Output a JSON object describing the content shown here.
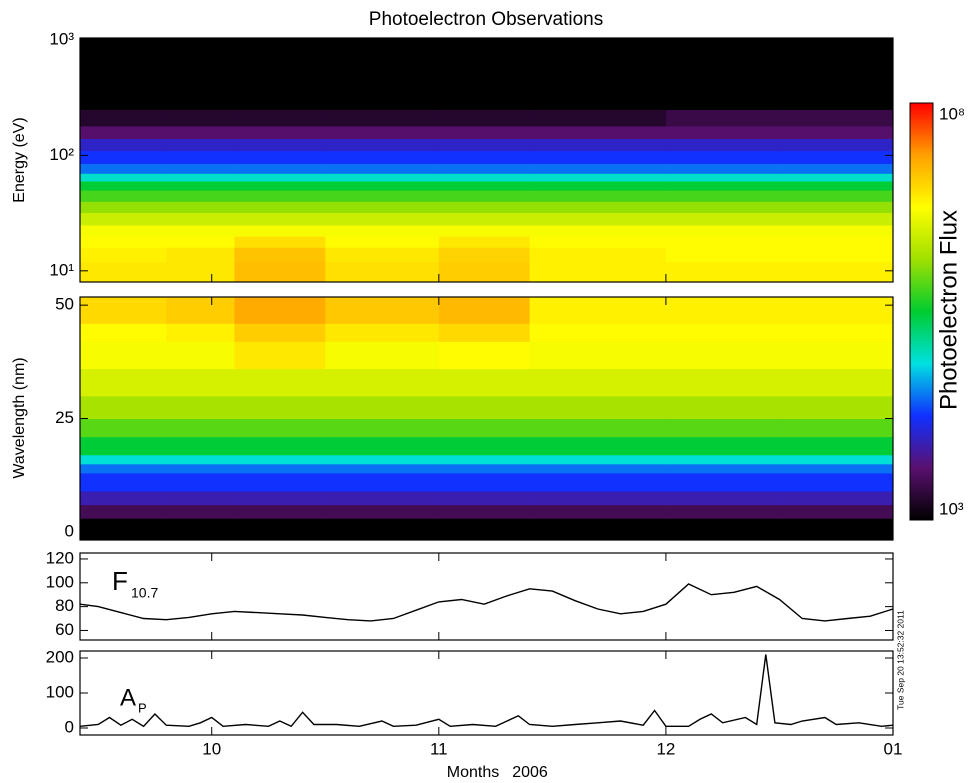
{
  "chart_data": [
    {
      "type": "heatmap",
      "title": "Photoelectron Observations",
      "ylabel": "Energy (eV)",
      "ylog": true,
      "xlim": [
        9.42,
        13.0
      ],
      "ylim": [
        8,
        1040
      ],
      "yticks": [
        {
          "value": 10,
          "label": "10¹"
        },
        {
          "value": 100,
          "label": "10²"
        },
        {
          "value": 1000,
          "label": "10³"
        }
      ],
      "x_edges": [
        9.42,
        9.8,
        10.1,
        10.5,
        11.0,
        11.4,
        12.0,
        12.5,
        13.0
      ],
      "y_edges": [
        8,
        12,
        16,
        20,
        25,
        32,
        40,
        50,
        60,
        70,
        85,
        110,
        140,
        180,
        250,
        1040
      ],
      "values": [
        [
          8000000.0,
          8000000.0,
          15000000.0,
          9000000.0,
          12000000.0,
          7000000.0,
          7000000.0,
          7000000.0
        ],
        [
          7000000.0,
          8000000.0,
          14000000.0,
          8000000.0,
          11000000.0,
          7000000.0,
          6000000.0,
          6000000.0
        ],
        [
          6000000.0,
          6000000.0,
          9000000.0,
          6000000.0,
          8000000.0,
          6000000.0,
          6000000.0,
          6000000.0
        ],
        [
          5000000.0,
          5000000.0,
          5000000.0,
          5000000.0,
          5000000.0,
          5000000.0,
          5000000.0,
          5000000.0
        ],
        [
          2500000.0,
          2500000.0,
          2500000.0,
          2500000.0,
          2500000.0,
          2500000.0,
          2500000.0,
          2500000.0
        ],
        [
          1200000.0,
          1200000.0,
          1200000.0,
          1200000.0,
          1200000.0,
          1200000.0,
          1200000.0,
          1200000.0
        ],
        [
          600000.0,
          600000.0,
          600000.0,
          600000.0,
          600000.0,
          600000.0,
          600000.0,
          600000.0
        ],
        [
          300000.0,
          300000.0,
          300000.0,
          300000.0,
          300000.0,
          300000.0,
          300000.0,
          300000.0
        ],
        [
          90000.0,
          90000.0,
          90000.0,
          90000.0,
          90000.0,
          90000.0,
          90000.0,
          90000.0
        ],
        [
          30000.0,
          30000.0,
          30000.0,
          30000.0,
          30000.0,
          30000.0,
          30000.0,
          30000.0
        ],
        [
          18000.0,
          18000.0,
          18000.0,
          18000.0,
          18000.0,
          18000.0,
          18000.0,
          18000.0
        ],
        [
          10000.0,
          10000.0,
          10000.0,
          10000.0,
          10000.0,
          10000.0,
          10000.0,
          10000.0
        ],
        [
          4000.0,
          4000.0,
          4000.0,
          4000.0,
          4000.0,
          4000.0,
          4000.0,
          4000.0
        ],
        [
          1800.0,
          1800.0,
          1800.0,
          1800.0,
          1800.0,
          1800.0,
          2500.0,
          2500.0
        ],
        [
          1000.0,
          1000.0,
          1000.0,
          1000.0,
          1000.0,
          1000.0,
          1000.0,
          1000.0
        ]
      ],
      "colorbar": {
        "label": "Photoelectron Flux",
        "log": true,
        "lim": [
          1000,
          100000000.0
        ],
        "ticks": [
          {
            "value": 100000000.0,
            "label": "10⁸"
          },
          {
            "value": 1000,
            "label": "10³"
          }
        ],
        "colormap": [
          "#000000",
          "#5a1070",
          "#1030ff",
          "#00e0e0",
          "#00cc30",
          "#a0e000",
          "#ffff00",
          "#ffa000",
          "#ff0000"
        ]
      }
    },
    {
      "type": "heatmap",
      "ylabel": "Wavelength (nm)",
      "xlim": [
        9.42,
        13.0
      ],
      "ylim": [
        -1.8,
        51.8
      ],
      "yticks": [
        0,
        25,
        50
      ],
      "x_edges": [
        9.42,
        9.8,
        10.1,
        10.5,
        11.0,
        11.4,
        12.0,
        12.5,
        13.0
      ],
      "y_edges": [
        -1.8,
        3,
        6,
        9,
        13,
        15,
        17,
        21,
        25,
        30,
        36,
        42,
        46,
        51.8
      ],
      "values": [
        [
          1000.0,
          1000.0,
          1000.0,
          1000.0,
          1000.0,
          1000.0,
          1000.0,
          1000.0
        ],
        [
          3000.0,
          3000.0,
          3000.0,
          3000.0,
          3000.0,
          3000.0,
          3000.0,
          3000.0
        ],
        [
          8000.0,
          8000.0,
          8000.0,
          8000.0,
          8000.0,
          8000.0,
          8000.0,
          8000.0
        ],
        [
          18000.0,
          18000.0,
          18000.0,
          18000.0,
          18000.0,
          18000.0,
          18000.0,
          18000.0
        ],
        [
          30000.0,
          30000.0,
          30000.0,
          30000.0,
          30000.0,
          30000.0,
          30000.0,
          30000.0
        ],
        [
          80000.0,
          80000.0,
          80000.0,
          80000.0,
          80000.0,
          80000.0,
          80000.0,
          80000.0
        ],
        [
          300000.0,
          300000.0,
          300000.0,
          300000.0,
          300000.0,
          300000.0,
          300000.0,
          300000.0
        ],
        [
          700000.0,
          700000.0,
          700000.0,
          700000.0,
          700000.0,
          700000.0,
          700000.0,
          700000.0
        ],
        [
          1500000.0,
          1500000.0,
          1500000.0,
          1500000.0,
          1500000.0,
          1500000.0,
          1500000.0,
          1500000.0
        ],
        [
          3000000.0,
          3000000.0,
          3000000.0,
          3000000.0,
          3000000.0,
          3000000.0,
          3000000.0,
          3000000.0
        ],
        [
          5000000.0,
          5000000.0,
          8000000.0,
          5000000.0,
          6000000.0,
          5000000.0,
          5000000.0,
          5000000.0
        ],
        [
          6000000.0,
          7000000.0,
          12000000.0,
          8000000.0,
          10000000.0,
          6000000.0,
          6000000.0,
          6000000.0
        ],
        [
          10000000.0,
          12000000.0,
          20000000.0,
          13000000.0,
          16000000.0,
          7000000.0,
          7000000.0,
          7000000.0
        ]
      ]
    },
    {
      "type": "line",
      "annotation": {
        "text": "F",
        "subscript": "10.7"
      },
      "xlim": [
        9.42,
        13.0
      ],
      "ylim": [
        52,
        125
      ],
      "yticks": [
        60,
        80,
        100,
        120
      ],
      "x": [
        9.42,
        9.5,
        9.6,
        9.7,
        9.8,
        9.9,
        10.0,
        10.1,
        10.2,
        10.3,
        10.4,
        10.5,
        10.6,
        10.7,
        10.8,
        10.9,
        11.0,
        11.1,
        11.2,
        11.3,
        11.4,
        11.5,
        11.6,
        11.7,
        11.8,
        11.9,
        12.0,
        12.1,
        12.2,
        12.3,
        12.4,
        12.5,
        12.6,
        12.7,
        12.8,
        12.9,
        13.0
      ],
      "values": [
        82,
        80,
        75,
        70,
        69,
        71,
        74,
        76,
        75,
        74,
        73,
        71,
        69,
        68,
        70,
        77,
        84,
        86,
        82,
        89,
        95,
        93,
        85,
        78,
        74,
        76,
        82,
        99,
        90,
        92,
        97,
        86,
        70,
        68,
        70,
        72,
        78
      ],
      "color": "#000000"
    },
    {
      "type": "line",
      "annotation": {
        "text": "A",
        "subscript": "P"
      },
      "xlabel": "Months",
      "xlabel_year": "2006",
      "stamp": "Tue Sep 20 13:52:32 2011",
      "xlim": [
        9.42,
        13.0
      ],
      "ylim": [
        -20,
        220
      ],
      "yticks": [
        0,
        100,
        200
      ],
      "xticks": [
        10,
        11,
        12,
        {
          "value": 13,
          "label": "01"
        }
      ],
      "x": [
        9.42,
        9.5,
        9.55,
        9.6,
        9.65,
        9.7,
        9.75,
        9.8,
        9.9,
        9.95,
        10.0,
        10.05,
        10.15,
        10.25,
        10.3,
        10.35,
        10.4,
        10.45,
        10.55,
        10.65,
        10.75,
        10.8,
        10.9,
        11.0,
        11.05,
        11.15,
        11.25,
        11.35,
        11.4,
        11.5,
        11.6,
        11.7,
        11.8,
        11.9,
        11.95,
        12.0,
        12.1,
        12.15,
        12.2,
        12.25,
        12.35,
        12.4,
        12.44,
        12.48,
        12.55,
        12.6,
        12.7,
        12.75,
        12.85,
        12.95,
        13.0
      ],
      "values": [
        5,
        10,
        30,
        8,
        25,
        5,
        40,
        8,
        5,
        15,
        30,
        5,
        10,
        5,
        20,
        5,
        45,
        10,
        10,
        5,
        20,
        5,
        8,
        25,
        5,
        10,
        5,
        35,
        10,
        5,
        10,
        15,
        20,
        8,
        50,
        5,
        5,
        25,
        40,
        15,
        30,
        10,
        210,
        15,
        10,
        20,
        30,
        10,
        15,
        5,
        8
      ],
      "color": "#000000"
    }
  ]
}
